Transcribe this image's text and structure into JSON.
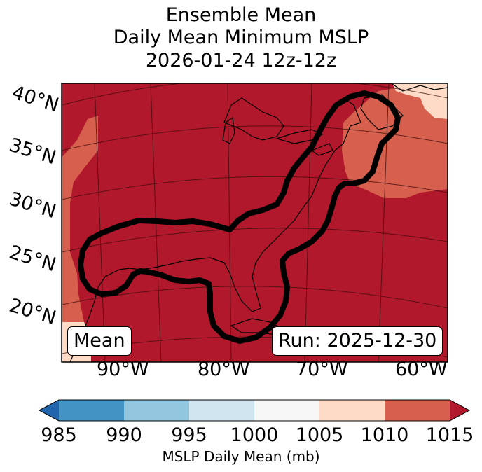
{
  "title": {
    "line1": "Ensemble Mean",
    "line2": "Daily Mean Minimum MSLP",
    "line3": "2026-01-24 12z-12z"
  },
  "map": {
    "lat_labels": [
      "40°N",
      "35°N",
      "30°N",
      "25°N",
      "20°N"
    ],
    "lon_labels": [
      "90°W",
      "80°W",
      "70°W",
      "60°W"
    ],
    "mean_label": "Mean",
    "run_label": "Run: 2025-12-30"
  },
  "colorbar": {
    "ticks": [
      "985",
      "990",
      "995",
      "1000",
      "1005",
      "1010",
      "1015"
    ],
    "label": "MSLP Daily Mean (mb)",
    "colors": [
      "#2166ac",
      "#4393c3",
      "#92c5de",
      "#d1e5f0",
      "#f7f7f7",
      "#fddbc7",
      "#d6604d",
      "#b2182b"
    ]
  },
  "palette": {
    "dominant": "#b2182b",
    "mid": "#d6604d",
    "light": "#fddbc7",
    "contour": "#000000"
  }
}
